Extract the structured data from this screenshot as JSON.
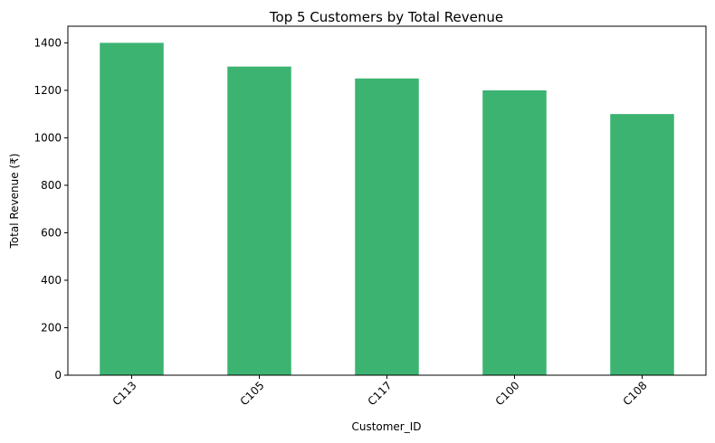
{
  "chart_data": {
    "type": "bar",
    "title": "Top 5 Customers by Total Revenue",
    "xlabel": "Customer_ID",
    "ylabel": "Total Revenue (₹)",
    "categories": [
      "C113",
      "C105",
      "C117",
      "C100",
      "C108"
    ],
    "values": [
      1400,
      1300,
      1250,
      1200,
      1100
    ],
    "ylim": [
      0,
      1470
    ],
    "yticks": [
      0,
      200,
      400,
      600,
      800,
      1000,
      1200,
      1400
    ],
    "bar_color": "#3cb371",
    "grid": false,
    "legend": "none"
  }
}
